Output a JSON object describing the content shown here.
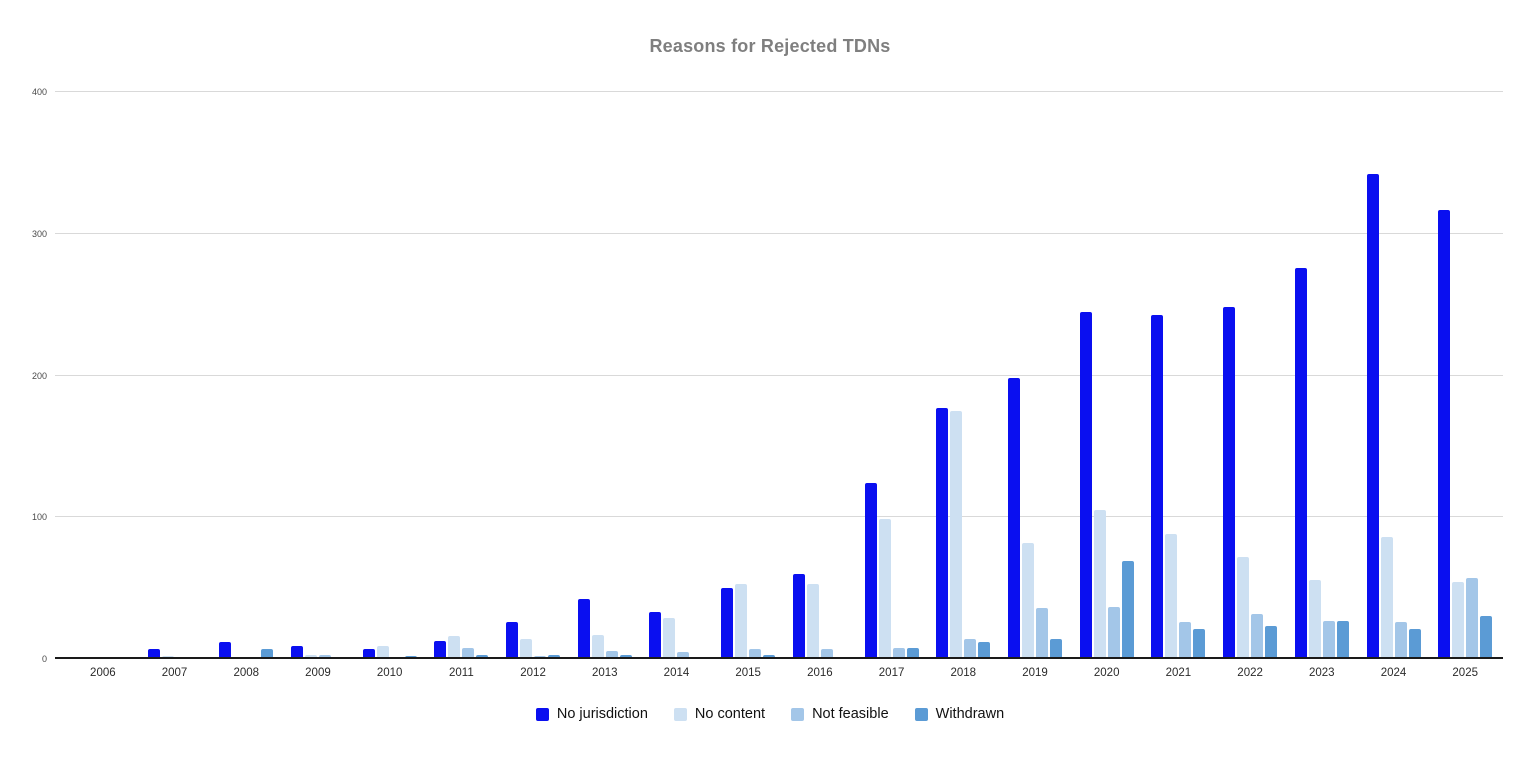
{
  "chart_data": {
    "type": "bar",
    "title": "Reasons for Rejected TDNs",
    "categories": [
      "2006",
      "2007",
      "2008",
      "2009",
      "2010",
      "2011",
      "2012",
      "2013",
      "2014",
      "2015",
      "2016",
      "2017",
      "2018",
      "2019",
      "2020",
      "2021",
      "2022",
      "2023",
      "2024",
      "2025"
    ],
    "series": [
      {
        "name": "No jurisdiction",
        "color": "#0a0ff0",
        "values": [
          1,
          7,
          12,
          9,
          7,
          13,
          26,
          42,
          33,
          50,
          60,
          124,
          177,
          198,
          245,
          243,
          248,
          276,
          342,
          317
        ]
      },
      {
        "name": "No content",
        "color": "#cde0f2",
        "values": [
          0,
          2,
          1,
          3,
          9,
          16,
          14,
          17,
          29,
          53,
          53,
          99,
          175,
          82,
          105,
          88,
          72,
          56,
          86,
          54
        ]
      },
      {
        "name": "Not feasible",
        "color": "#a3c6e8",
        "values": [
          1,
          1,
          0,
          3,
          0,
          8,
          2,
          6,
          5,
          7,
          7,
          8,
          14,
          36,
          37,
          26,
          32,
          27,
          26,
          57
        ]
      },
      {
        "name": "Withdrawn",
        "color": "#5b9bd5",
        "values": [
          1,
          0,
          7,
          0,
          2,
          3,
          3,
          3,
          1,
          3,
          1,
          8,
          12,
          14,
          69,
          21,
          23,
          27,
          21,
          30
        ]
      }
    ],
    "xlabel": "",
    "ylabel": "",
    "ylim": [
      0,
      400
    ],
    "yticks": [
      0,
      100,
      200,
      300,
      400
    ],
    "grid": "horizontal",
    "legend_position": "bottom",
    "colors": {
      "title_text": "#7f7f7f",
      "axis_line": "#1a1a1a",
      "gridline": "#d9d9d9",
      "tick_text": "#4a4a4a",
      "category_text": "#2b2b2b",
      "background": "#ffffff"
    }
  }
}
